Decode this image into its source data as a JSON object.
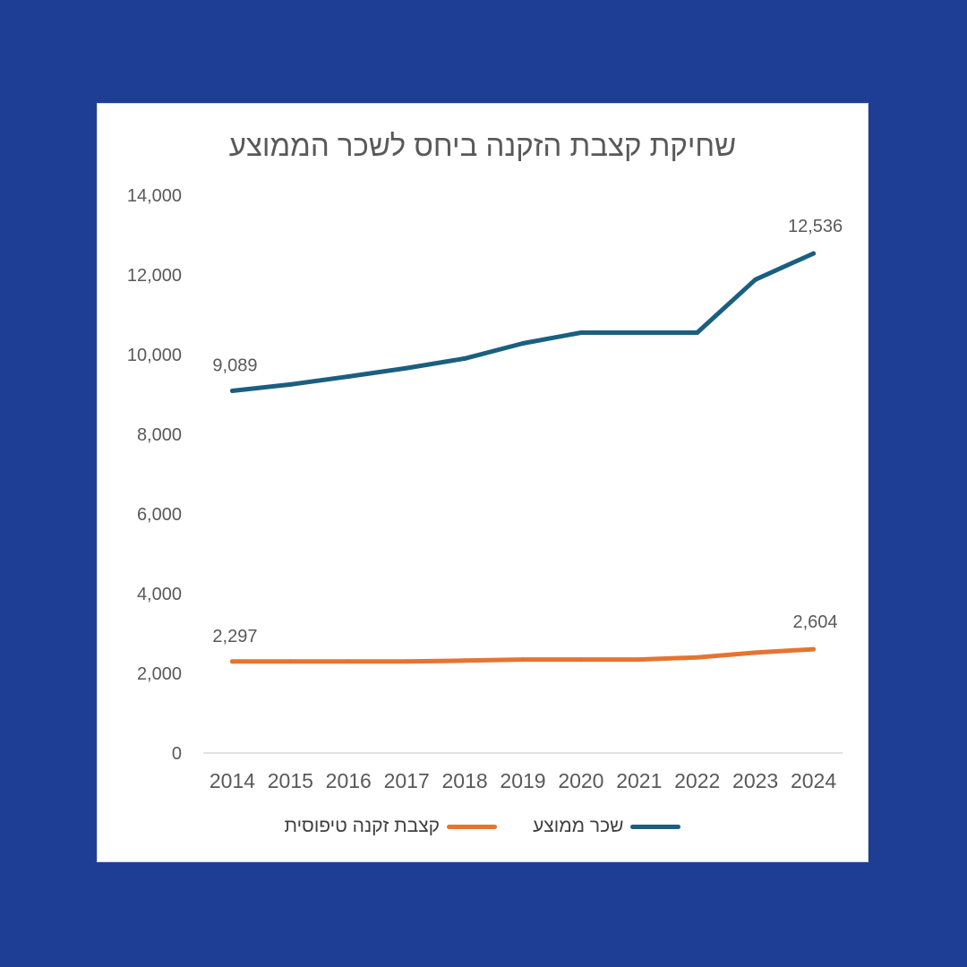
{
  "colors": {
    "background": "#1e3e96",
    "card": "#ffffff",
    "wage_line": "#1b5f80",
    "pension_line": "#e57433",
    "axis_text": "#595959",
    "axis_line": "#d9d9d9"
  },
  "chart_data": {
    "type": "line",
    "title": "שחיקת קצבת הזקנה ביחס לשכר הממוצע",
    "xlabel": "",
    "ylabel": "",
    "ylim": [
      0,
      14000
    ],
    "yticks": [
      "0",
      "2,000",
      "4,000",
      "6,000",
      "8,000",
      "10,000",
      "12,000",
      "14,000"
    ],
    "categories": [
      "2014",
      "2015",
      "2016",
      "2017",
      "2018",
      "2019",
      "2020",
      "2021",
      "2022",
      "2023",
      "2024"
    ],
    "grid": false,
    "legend_position": "bottom",
    "series": [
      {
        "name": "שכר ממוצע",
        "color": "#1b5f80",
        "values": [
          9089,
          9250,
          9450,
          9660,
          9900,
          10280,
          10550,
          10550,
          10550,
          11880,
          12536
        ],
        "labels": {
          "first": "9,089",
          "last": "12,536"
        }
      },
      {
        "name": "קצבת זקנה טיפוסית",
        "color": "#e57433",
        "values": [
          2297,
          2297,
          2297,
          2297,
          2320,
          2345,
          2345,
          2345,
          2400,
          2520,
          2604
        ],
        "labels": {
          "first": "2,297",
          "last": "2,604"
        }
      }
    ]
  }
}
